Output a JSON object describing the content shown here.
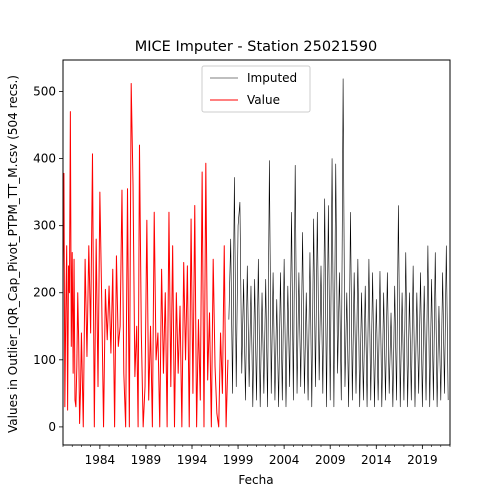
{
  "chart_data": {
    "type": "line",
    "title": "MICE Imputer - Station 25021590",
    "xlabel": "Fecha",
    "ylabel": "Values in Outlier_IQR_Cap_Pivot_PTPM_TT_M.csv (504 recs.)",
    "xlim": [
      1980.0,
      2022.0
    ],
    "ylim": [
      -27,
      547
    ],
    "x_ticks": [
      1984,
      1989,
      1994,
      1999,
      2004,
      2009,
      2014,
      2019
    ],
    "x_tick_labels": [
      "1984",
      "1989",
      "1994",
      "1999",
      "2004",
      "2009",
      "2014",
      "2019"
    ],
    "y_ticks": [
      0,
      100,
      200,
      300,
      400,
      500
    ],
    "y_tick_labels": [
      "0",
      "100",
      "200",
      "300",
      "400",
      "500"
    ],
    "grid": false,
    "legend": {
      "position": "top-center",
      "entries": [
        {
          "label": "Imputed",
          "color": "#000000"
        },
        {
          "label": "Value",
          "color": "#ff0000"
        }
      ]
    },
    "series": [
      {
        "name": "Value",
        "color": "#ff0000",
        "x": [
          1980.0,
          1980.1,
          1980.2,
          1980.3,
          1980.4,
          1980.5,
          1980.6,
          1980.7,
          1980.8,
          1980.9,
          1981.0,
          1981.1,
          1981.2,
          1981.3,
          1981.4,
          1981.5,
          1981.6,
          1981.7,
          1981.8,
          1981.9,
          1982.0,
          1982.2,
          1982.4,
          1982.6,
          1982.8,
          1983.0,
          1983.2,
          1983.4,
          1983.6,
          1983.8,
          1984.0,
          1984.2,
          1984.4,
          1984.6,
          1984.8,
          1985.0,
          1985.2,
          1985.4,
          1985.6,
          1985.8,
          1986.0,
          1986.2,
          1986.4,
          1986.6,
          1986.8,
          1987.0,
          1987.2,
          1987.4,
          1987.6,
          1987.8,
          1988.0,
          1988.15,
          1988.3,
          1988.5,
          1988.7,
          1988.9,
          1989.1,
          1989.3,
          1989.5,
          1989.7,
          1989.9,
          1990.1,
          1990.3,
          1990.5,
          1990.7,
          1990.9,
          1991.1,
          1991.3,
          1991.5,
          1991.7,
          1991.9,
          1992.1,
          1992.3,
          1992.5,
          1992.7,
          1992.9,
          1993.1,
          1993.3,
          1993.5,
          1993.7,
          1993.9,
          1994.1,
          1994.3,
          1994.5,
          1994.7,
          1994.9,
          1995.1,
          1995.3,
          1995.5,
          1995.7,
          1995.9,
          1996.1,
          1996.3,
          1996.5,
          1996.7,
          1996.9,
          1997.1,
          1997.3,
          1997.5,
          1997.7,
          1997.9
        ],
        "y": [
          230,
          378,
          30,
          170,
          270,
          25,
          240,
          200,
          470,
          120,
          260,
          80,
          250,
          40,
          30,
          90,
          200,
          130,
          5,
          55,
          140,
          0,
          250,
          105,
          270,
          140,
          407,
          0,
          280,
          60,
          350,
          190,
          0,
          205,
          130,
          210,
          110,
          235,
          0,
          255,
          120,
          150,
          353,
          80,
          0,
          355,
          0,
          512,
          360,
          75,
          150,
          0,
          420,
          140,
          0,
          60,
          308,
          40,
          150,
          0,
          320,
          100,
          140,
          0,
          235,
          80,
          200,
          0,
          320,
          60,
          270,
          0,
          200,
          80,
          180,
          0,
          245,
          100,
          240,
          0,
          310,
          50,
          330,
          0,
          160,
          40,
          380,
          0,
          393,
          70,
          170,
          0,
          250,
          90,
          20,
          0,
          140,
          50,
          270,
          0,
          100
        ]
      },
      {
        "name": "Imputed",
        "color": "#000000",
        "x": [
          1998.0,
          1998.2,
          1998.4,
          1998.6,
          1998.8,
          1999.0,
          1999.2,
          1999.4,
          1999.6,
          1999.8,
          2000.0,
          2000.2,
          2000.4,
          2000.6,
          2000.8,
          2001.0,
          2001.2,
          2001.4,
          2001.6,
          2001.8,
          2002.0,
          2002.2,
          2002.4,
          2002.6,
          2002.8,
          2003.0,
          2003.2,
          2003.4,
          2003.6,
          2003.8,
          2004.0,
          2004.2,
          2004.4,
          2004.6,
          2004.8,
          2005.0,
          2005.2,
          2005.4,
          2005.6,
          2005.8,
          2006.0,
          2006.2,
          2006.4,
          2006.6,
          2006.8,
          2007.0,
          2007.2,
          2007.4,
          2007.6,
          2007.8,
          2008.0,
          2008.2,
          2008.4,
          2008.6,
          2008.8,
          2009.0,
          2009.2,
          2009.4,
          2009.6,
          2009.8,
          2010.0,
          2010.2,
          2010.4,
          2010.6,
          2010.8,
          2011.0,
          2011.2,
          2011.4,
          2011.6,
          2011.8,
          2012.0,
          2012.2,
          2012.4,
          2012.6,
          2012.8,
          2013.0,
          2013.2,
          2013.4,
          2013.6,
          2013.8,
          2014.0,
          2014.2,
          2014.4,
          2014.6,
          2014.8,
          2015.0,
          2015.2,
          2015.4,
          2015.6,
          2015.8,
          2016.0,
          2016.2,
          2016.4,
          2016.6,
          2016.8,
          2017.0,
          2017.2,
          2017.4,
          2017.6,
          2017.8,
          2018.0,
          2018.2,
          2018.4,
          2018.6,
          2018.8,
          2019.0,
          2019.2,
          2019.4,
          2019.6,
          2019.8,
          2020.0,
          2020.2,
          2020.4,
          2020.6,
          2020.8,
          2021.0,
          2021.2,
          2021.4,
          2021.6,
          2021.8
        ],
        "y": [
          160,
          280,
          50,
          372,
          60,
          300,
          335,
          80,
          220,
          40,
          240,
          60,
          210,
          30,
          220,
          40,
          250,
          30,
          200,
          50,
          220,
          30,
          397,
          50,
          230,
          40,
          190,
          30,
          230,
          40,
          250,
          30,
          210,
          60,
          320,
          40,
          390,
          50,
          230,
          60,
          290,
          50,
          200,
          40,
          260,
          30,
          310,
          60,
          320,
          70,
          240,
          50,
          340,
          30,
          330,
          40,
          400,
          30,
          392,
          80,
          230,
          40,
          519,
          60,
          200,
          30,
          320,
          40,
          230,
          50,
          250,
          30,
          200,
          40,
          210,
          30,
          250,
          40,
          230,
          30,
          190,
          40,
          232,
          30,
          200,
          40,
          230,
          50,
          170,
          30,
          210,
          40,
          330,
          30,
          200,
          40,
          260,
          30,
          200,
          40,
          240,
          30,
          200,
          50,
          230,
          30,
          210,
          40,
          270,
          30,
          220,
          40,
          260,
          30,
          180,
          40,
          230,
          50,
          270,
          40
        ]
      }
    ]
  }
}
